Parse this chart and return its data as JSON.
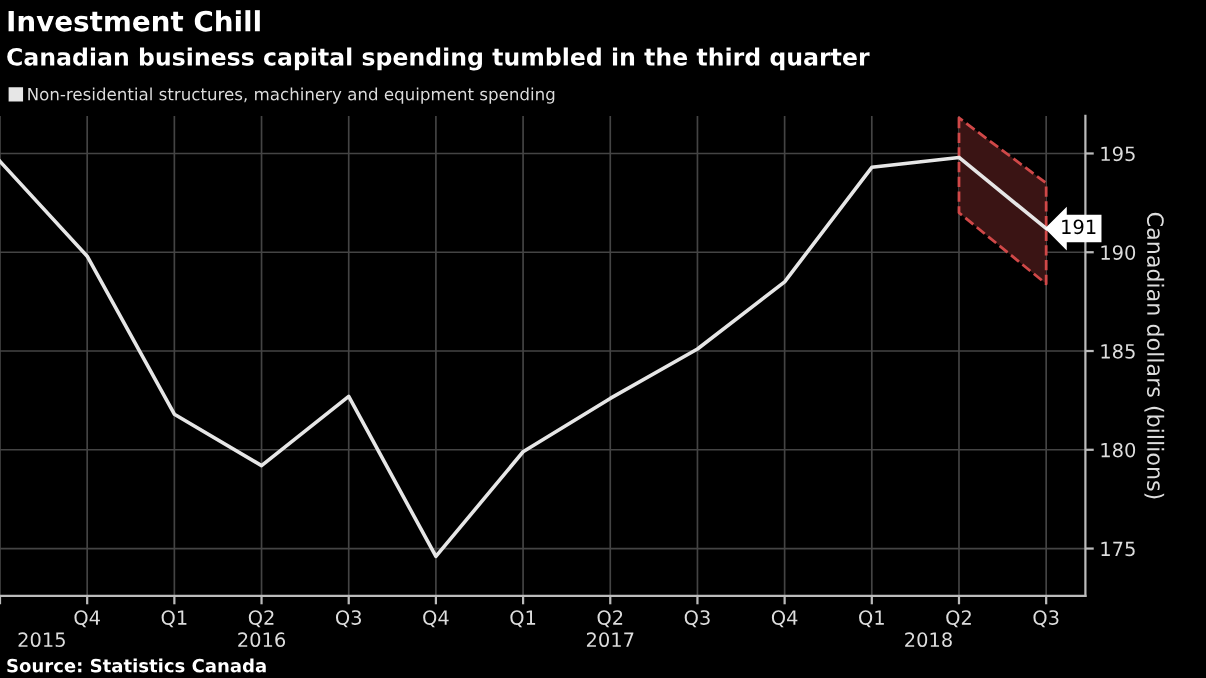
{
  "chart_data": {
    "type": "line",
    "title": "Investment Chill",
    "subtitle": "Canadian business capital spending tumbled in the third quarter",
    "ylabel": "Canadian dollars (billions)",
    "categories": [
      null,
      "Q4",
      "Q1",
      "Q2",
      "Q3",
      "Q4",
      "Q1",
      "Q2",
      "Q3",
      "Q4",
      "Q1",
      "Q2",
      "Q3"
    ],
    "series": [
      {
        "name": "Non-residential structures, machinery and equipment spending",
        "color": "#e6e6e6",
        "values": [
          194.6,
          189.8,
          181.8,
          179.2,
          182.7,
          174.6,
          179.9,
          182.6,
          185.1,
          188.5,
          194.3,
          194.8,
          191.2
        ],
        "value_labels": [
          null,
          null,
          null,
          null,
          null,
          null,
          null,
          null,
          null,
          null,
          null,
          null,
          "191"
        ],
        "lower": [
          null,
          null,
          null,
          null,
          null,
          null,
          null,
          null,
          null,
          null,
          null,
          192.0,
          188.4
        ],
        "upper": [
          null,
          null,
          null,
          null,
          null,
          null,
          null,
          null,
          null,
          null,
          null,
          196.8,
          193.5
        ]
      }
    ],
    "ylim": [
      172.6,
      196.9
    ],
    "yticks": [
      175,
      180,
      185,
      190,
      195
    ],
    "grid": true,
    "legend": "top left",
    "annotations": [
      "2015",
      "2016",
      "2017",
      "2018",
      "Source: Statistics Canada"
    ]
  }
}
